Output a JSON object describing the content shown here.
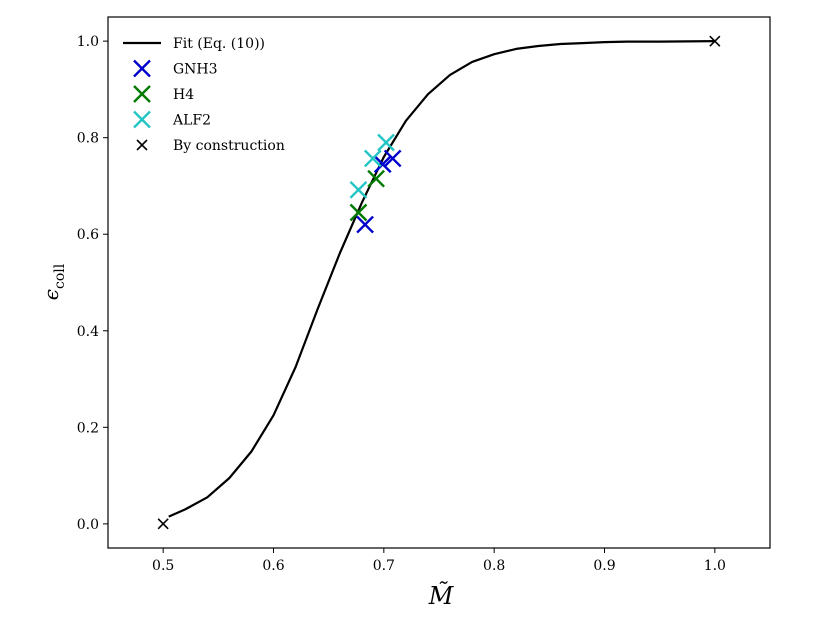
{
  "chart_data": {
    "type": "scatter",
    "xlabel": "M̃",
    "ylabel": "ϵ",
    "ylabel_sub": "coll",
    "xlim": [
      0.45,
      1.05
    ],
    "ylim": [
      -0.05,
      1.05
    ],
    "xticks": [
      0.5,
      0.6,
      0.7,
      0.8,
      0.9,
      1.0
    ],
    "xtick_labels": [
      "0.5",
      "0.6",
      "0.7",
      "0.8",
      "0.9",
      "1.0"
    ],
    "yticks": [
      0.0,
      0.2,
      0.4,
      0.6,
      0.8,
      1.0
    ],
    "ytick_labels": [
      "0.0",
      "0.2",
      "0.4",
      "0.6",
      "0.8",
      "1.0"
    ],
    "grid": false,
    "legend_position": "top-left",
    "series": [
      {
        "name": "Fit (Eq. (10))",
        "kind": "line",
        "color": "#000000",
        "x": [
          0.505,
          0.52,
          0.54,
          0.56,
          0.58,
          0.6,
          0.62,
          0.64,
          0.66,
          0.68,
          0.7,
          0.72,
          0.74,
          0.76,
          0.78,
          0.8,
          0.82,
          0.84,
          0.86,
          0.88,
          0.9,
          0.92,
          0.95,
          1.0
        ],
        "y": [
          0.015,
          0.03,
          0.055,
          0.095,
          0.15,
          0.225,
          0.325,
          0.445,
          0.56,
          0.665,
          0.76,
          0.835,
          0.89,
          0.93,
          0.957,
          0.973,
          0.984,
          0.99,
          0.994,
          0.996,
          0.998,
          0.999,
          0.999,
          1.0
        ]
      },
      {
        "name": "GNH3",
        "kind": "scatter",
        "marker": "x-large",
        "color": "#0000cc",
        "x": [
          0.683,
          0.699,
          0.708
        ],
        "y": [
          0.62,
          0.745,
          0.757
        ]
      },
      {
        "name": "H4",
        "kind": "scatter",
        "marker": "x-large",
        "color": "#007a00",
        "x": [
          0.677,
          0.693
        ],
        "y": [
          0.645,
          0.715
        ]
      },
      {
        "name": "ALF2",
        "kind": "scatter",
        "marker": "x-large",
        "color": "#22c4c4",
        "x": [
          0.677,
          0.69,
          0.702
        ],
        "y": [
          0.692,
          0.757,
          0.79
        ]
      },
      {
        "name": "By construction",
        "kind": "scatter",
        "marker": "x-small",
        "color": "#000000",
        "x": [
          0.5,
          1.0
        ],
        "y": [
          0.0,
          1.0
        ]
      }
    ]
  }
}
